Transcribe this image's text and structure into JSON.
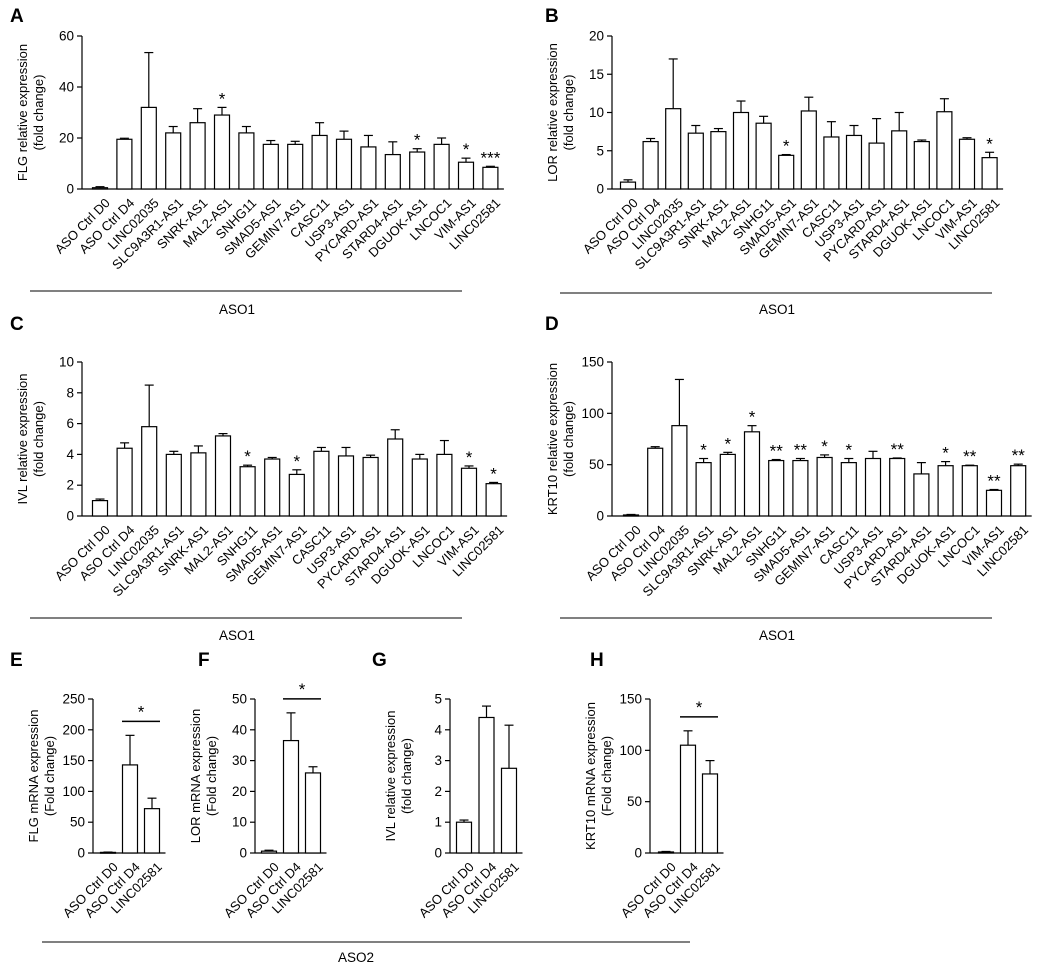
{
  "figure": {
    "group_labels": {
      "aso1": "ASO1",
      "aso2": "ASO2"
    }
  },
  "chart_data": [
    {
      "id": "A",
      "panel_label": "A",
      "type": "bar",
      "ylabel_lines": [
        "FLG relative expression",
        "(fold change)"
      ],
      "ylim": [
        0,
        60
      ],
      "yticks": [
        0,
        20,
        40,
        60
      ],
      "group": "ASO1",
      "categories": [
        "ASO Ctrl D0",
        "ASO Ctrl D4",
        "LINC02035",
        "SLC9A3R1-AS1",
        "SNRK-AS1",
        "MAL2-AS1",
        "SNHG11",
        "SMAD5-AS1",
        "GEMIN7-AS1",
        "CASC11",
        "USP3-AS1",
        "PYCARD-AS1",
        "STARD4-AS1",
        "DGUOK-AS1",
        "LNCOC1",
        "VIM-AS1",
        "LINC02581"
      ],
      "values": [
        0.5,
        19.5,
        32,
        22,
        26,
        29,
        22,
        17.5,
        17.5,
        21,
        19.5,
        16.5,
        13.5,
        14.5,
        17.5,
        10.5,
        8.5
      ],
      "errors": [
        0.4,
        0.4,
        21.5,
        2.5,
        5.5,
        3,
        2.5,
        1.5,
        1.2,
        5,
        3.2,
        4.5,
        5,
        1.3,
        2.5,
        1.6,
        0.4
      ],
      "significance": [
        "",
        "",
        "",
        "",
        "",
        "*",
        "",
        "",
        "",
        "",
        "",
        "",
        "",
        "*",
        "",
        "*",
        "***"
      ]
    },
    {
      "id": "B",
      "panel_label": "B",
      "type": "bar",
      "ylabel_lines": [
        "LOR relative expression",
        "(fold change)"
      ],
      "ylim": [
        0,
        20
      ],
      "yticks": [
        0,
        5,
        10,
        15,
        20
      ],
      "group": "ASO1",
      "categories": [
        "ASO Ctrl D0",
        "ASO Ctrl D4",
        "LINC02035",
        "SLC9A3R1-AS1",
        "SNRK-AS1",
        "MAL2-AS1",
        "SNHG11",
        "SMAD5-AS1",
        "GEMIN7-AS1",
        "CASC11",
        "USP3-AS1",
        "PYCARD-AS1",
        "STARD4-AS1",
        "DGUOK-AS1",
        "LNCOC1",
        "VIM-AS1",
        "LINC02581"
      ],
      "values": [
        0.9,
        6.2,
        10.5,
        7.3,
        7.5,
        10,
        8.6,
        4.4,
        10.2,
        6.8,
        7,
        6,
        7.6,
        6.2,
        10.1,
        6.5,
        4.1
      ],
      "errors": [
        0.3,
        0.4,
        6.5,
        1,
        0.4,
        1.5,
        0.9,
        0.1,
        1.8,
        2,
        1.3,
        3.2,
        2.4,
        0.2,
        1.7,
        0.2,
        0.7
      ],
      "significance": [
        "",
        "",
        "",
        "",
        "",
        "",
        "",
        "*",
        "",
        "",
        "",
        "",
        "",
        "",
        "",
        "",
        "*"
      ]
    },
    {
      "id": "C",
      "panel_label": "C",
      "type": "bar",
      "ylabel_lines": [
        "IVL relative expression",
        "(fold change)"
      ],
      "ylim": [
        0,
        10
      ],
      "yticks": [
        0,
        2,
        4,
        6,
        8,
        10
      ],
      "group": "ASO1",
      "categories": [
        "ASO Ctrl D0",
        "ASO Ctrl D4",
        "LINC02035",
        "SLC9A3R1-AS1",
        "SNRK-AS1",
        "MAL2-AS1",
        "SNHG11",
        "SMAD5-AS1",
        "GEMIN7-AS1",
        "CASC11",
        "USP3-AS1",
        "PYCARD-AS1",
        "STARD4-AS1",
        "DGUOK-AS1",
        "LNCOC1",
        "VIM-AS1",
        "LINC02581"
      ],
      "values": [
        1,
        4.4,
        5.8,
        4,
        4.1,
        5.2,
        3.2,
        3.7,
        2.7,
        4.2,
        3.9,
        3.8,
        5,
        3.7,
        4,
        3.1,
        2.1
      ],
      "errors": [
        0.1,
        0.35,
        2.7,
        0.2,
        0.45,
        0.15,
        0.1,
        0.1,
        0.3,
        0.25,
        0.55,
        0.15,
        0.6,
        0.3,
        0.9,
        0.15,
        0.08
      ],
      "significance": [
        "",
        "",
        "",
        "",
        "",
        "",
        "*",
        "",
        "*",
        "",
        "",
        "",
        "",
        "",
        "",
        "*",
        "*"
      ]
    },
    {
      "id": "D",
      "panel_label": "D",
      "type": "bar",
      "ylabel_lines": [
        "KRT10 relative expression",
        "(fold change)"
      ],
      "ylim": [
        0,
        150
      ],
      "yticks": [
        0,
        50,
        100,
        150
      ],
      "group": "ASO1",
      "categories": [
        "ASO Ctrl D0",
        "ASO Ctrl D4",
        "LINC02035",
        "SLC9A3R1-AS1",
        "SNRK-AS1",
        "MAL2-AS1",
        "SNHG11",
        "SMAD5-AS1",
        "GEMIN7-AS1",
        "CASC11",
        "USP3-AS1",
        "PYCARD-AS1",
        "STARD4-AS1",
        "DGUOK-AS1",
        "LNCOC1",
        "VIM-AS1",
        "LINC02581"
      ],
      "values": [
        1,
        66,
        88,
        52,
        60,
        82,
        54,
        54,
        57,
        52,
        56,
        56,
        41,
        49,
        49,
        25,
        49
      ],
      "errors": [
        0.5,
        1.5,
        45,
        4,
        2,
        6,
        1,
        2,
        2.5,
        4,
        7,
        0.5,
        11,
        4,
        0.5,
        0.8,
        1.5
      ],
      "significance": [
        "",
        "",
        "",
        "*",
        "*",
        "*",
        "**",
        "**",
        "*",
        "*",
        "",
        "**",
        "",
        "*",
        "**",
        "**",
        "**"
      ]
    },
    {
      "id": "E",
      "panel_label": "E",
      "type": "bar",
      "ylabel_lines": [
        "FLG mRNA expression",
        "(Fold change)"
      ],
      "ylim": [
        0,
        250
      ],
      "yticks": [
        0,
        50,
        100,
        150,
        200,
        250
      ],
      "group": "ASO2",
      "categories": [
        "ASO Ctrl D0",
        "ASO Ctrl D4",
        "LINC02581"
      ],
      "values": [
        1,
        143,
        72
      ],
      "errors": [
        0.5,
        48,
        17
      ],
      "bracket": {
        "from": 1,
        "to": 2,
        "label": "*"
      }
    },
    {
      "id": "F",
      "panel_label": "F",
      "type": "bar",
      "ylabel_lines": [
        "LOR mRNA expression",
        "(Fold change)"
      ],
      "ylim": [
        0,
        50
      ],
      "yticks": [
        0,
        10,
        20,
        30,
        40,
        50
      ],
      "group": "ASO2",
      "categories": [
        "ASO Ctrl D0",
        "ASO Ctrl D4",
        "LINC02581"
      ],
      "values": [
        0.6,
        36.5,
        26
      ],
      "errors": [
        0.3,
        9,
        2
      ],
      "bracket": {
        "from": 1,
        "to": 2,
        "label": "*"
      }
    },
    {
      "id": "G",
      "panel_label": "G",
      "type": "bar",
      "ylabel_lines": [
        "IVL relative expression",
        "(fold change)"
      ],
      "ylim": [
        0,
        5
      ],
      "yticks": [
        0,
        1,
        2,
        3,
        4,
        5
      ],
      "group": "ASO2",
      "categories": [
        "ASO Ctrl D0",
        "ASO Ctrl D4",
        "LINC02581"
      ],
      "values": [
        1,
        4.4,
        2.75
      ],
      "errors": [
        0.07,
        0.37,
        1.4
      ],
      "bracket": null
    },
    {
      "id": "H",
      "panel_label": "H",
      "type": "bar",
      "ylabel_lines": [
        "KRT10 mRNA expression",
        "(Fold change)"
      ],
      "ylim": [
        0,
        150
      ],
      "yticks": [
        0,
        50,
        100,
        150
      ],
      "group": "ASO2",
      "categories": [
        "ASO Ctrl D0",
        "ASO Ctrl D4",
        "LINC02581"
      ],
      "values": [
        1,
        105,
        77
      ],
      "errors": [
        0.5,
        14,
        13
      ],
      "bracket": {
        "from": 1,
        "to": 2,
        "label": "*"
      }
    }
  ]
}
